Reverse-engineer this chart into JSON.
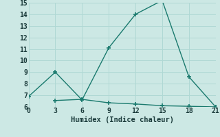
{
  "xlabel": "Humidex (Indice chaleur)",
  "ylabel": "",
  "bg_color": "#cce8e4",
  "line_color": "#1a7a6e",
  "grid_color": "#b0d8d4",
  "series1_x": [
    0,
    3,
    6,
    9,
    12,
    15,
    18,
    21
  ],
  "series1_y": [
    6.9,
    9.0,
    6.6,
    11.1,
    14.0,
    15.2,
    8.6,
    6.0
  ],
  "series2_x": [
    3,
    6,
    9,
    12,
    15,
    18,
    21
  ],
  "series2_y": [
    6.55,
    6.65,
    6.35,
    6.25,
    6.1,
    6.05,
    6.0
  ],
  "xlim": [
    0,
    21
  ],
  "ylim": [
    6,
    15
  ],
  "xticks": [
    0,
    3,
    6,
    9,
    12,
    15,
    18,
    21
  ],
  "yticks": [
    6,
    7,
    8,
    9,
    10,
    11,
    12,
    13,
    14,
    15
  ],
  "tick_fontsize": 7,
  "xlabel_fontsize": 7.5,
  "marker": "+",
  "marker_size": 4,
  "marker_lw": 1.2,
  "line_width": 1.0
}
